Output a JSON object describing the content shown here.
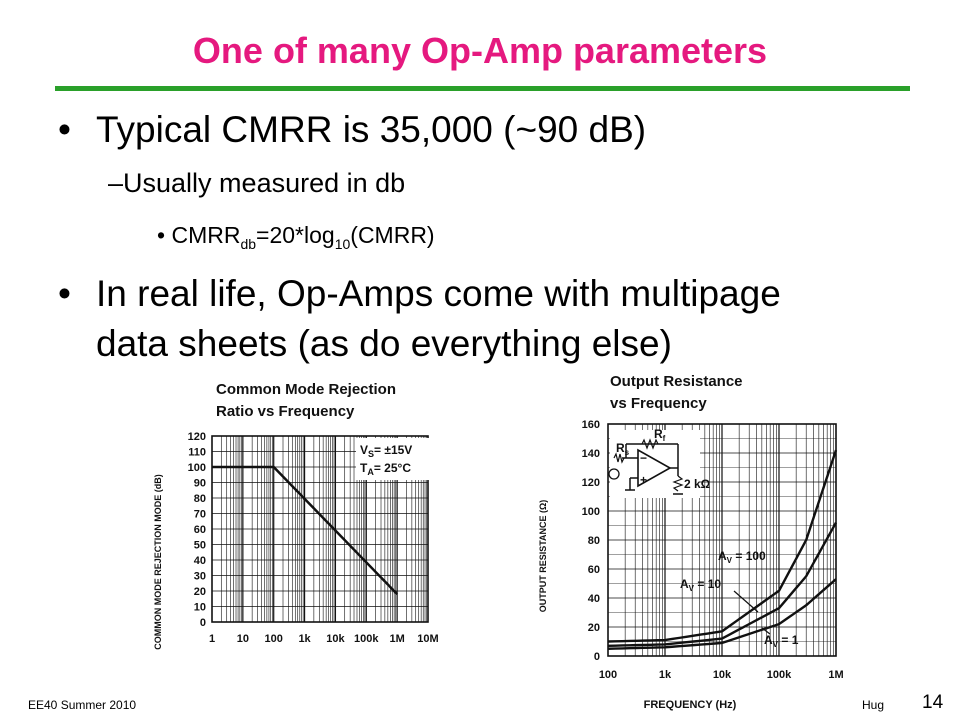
{
  "slide": {
    "title": "One of many Op-Amp parameters",
    "bullet1": "Typical CMRR is 35,000 (~90 dB)",
    "sub1": "Usually measured in db",
    "formula": {
      "a": "CMRR",
      "a_sub": "db",
      "b": "=20*log",
      "b_sub": "10",
      "c": "(CMRR)"
    },
    "bullet2_line1": "In real life, Op-Amps come with multipage",
    "bullet2_line2": "data sheets (as do everything else)",
    "footer_left": "EE40 Summer 2010",
    "footer_right": "Hug",
    "page": "14"
  },
  "chart_data": [
    {
      "type": "line",
      "title_line1": "Common Mode Rejection",
      "title_line2": "Ratio vs Frequency",
      "ylabel": "COMMON MODE REJECTION MODE (dB)",
      "xlabel": "",
      "x_scale": "log",
      "x_ticks": [
        "1",
        "10",
        "100",
        "1k",
        "10k",
        "100k",
        "1M",
        "10M"
      ],
      "y_ticks": [
        "0",
        "10",
        "20",
        "30",
        "40",
        "50",
        "60",
        "70",
        "80",
        "90",
        "100",
        "110",
        "120"
      ],
      "ylim": [
        0,
        120
      ],
      "annotation_vs": "= ±15V",
      "annotation_ta": "= 25°C",
      "series": [
        {
          "x": [
            1,
            100,
            1000000
          ],
          "y": [
            100,
            100,
            18
          ]
        }
      ]
    },
    {
      "type": "line",
      "title_line1": "Output Resistance",
      "title_line2": "vs Frequency",
      "ylabel": "OUTPUT RESISTANCE (Ω)",
      "xlabel": "FREQUENCY (Hz)",
      "x_scale": "log",
      "x_ticks": [
        "100",
        "1k",
        "10k",
        "100k",
        "1M"
      ],
      "y_ticks": [
        "0",
        "20",
        "40",
        "60",
        "80",
        "100",
        "120",
        "140",
        "160"
      ],
      "ylim": [
        0,
        160
      ],
      "series": [
        {
          "name": "AV = 100",
          "x": [
            100,
            1000,
            10000,
            100000,
            300000,
            1000000
          ],
          "y": [
            10,
            11,
            17,
            45,
            80,
            142
          ]
        },
        {
          "name": "AV = 10",
          "x": [
            100,
            1000,
            10000,
            100000,
            300000,
            1000000
          ],
          "y": [
            7,
            8,
            12,
            33,
            55,
            92
          ]
        },
        {
          "name": "AV = 1",
          "x": [
            100,
            1000,
            10000,
            100000,
            300000,
            1000000
          ],
          "y": [
            5,
            6,
            9,
            22,
            35,
            53
          ]
        }
      ],
      "labels": {
        "l100": "A",
        "l100s": "V",
        "l100v": " = 100",
        "l10": "A",
        "l10s": "V",
        "l10v": " = 10",
        "l1": "A",
        "l1s": "V",
        "l1v": " = 1"
      },
      "inset_rs": "R",
      "inset_rs_sub": "s",
      "inset_rf": "R",
      "inset_rf_sub": "f",
      "inset_load": "2 kΩ"
    }
  ]
}
